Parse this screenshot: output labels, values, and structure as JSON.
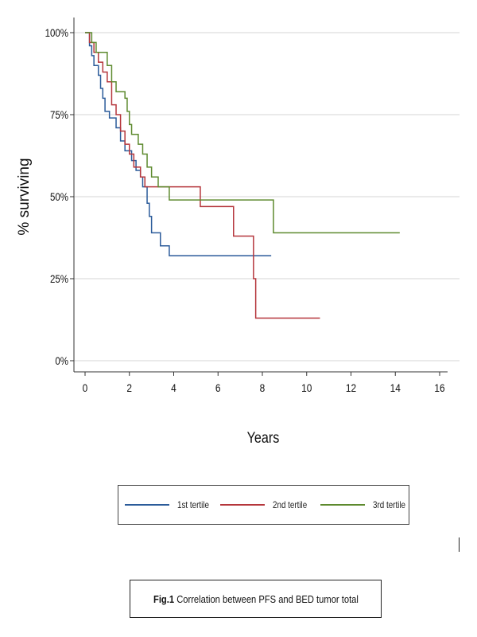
{
  "chart_data": {
    "type": "line",
    "step": true,
    "xlabel": "Years",
    "ylabel": "% surviving",
    "xlim": [
      0,
      16
    ],
    "ylim": [
      0,
      1
    ],
    "x_ticks": [
      0,
      2,
      4,
      6,
      8,
      10,
      12,
      14,
      16
    ],
    "y_ticks": [
      0,
      0.25,
      0.5,
      0.75,
      1
    ],
    "y_tick_labels": [
      "0%",
      "25%",
      "50%",
      "75%",
      "100%"
    ],
    "grid": true,
    "legend_position": "bottom",
    "series": [
      {
        "name": "1st tertile",
        "color": "#2b5b9a",
        "points": [
          [
            0,
            1.0
          ],
          [
            0.2,
            0.96
          ],
          [
            0.3,
            0.93
          ],
          [
            0.4,
            0.9
          ],
          [
            0.6,
            0.87
          ],
          [
            0.7,
            0.83
          ],
          [
            0.8,
            0.8
          ],
          [
            0.9,
            0.76
          ],
          [
            1.1,
            0.74
          ],
          [
            1.4,
            0.71
          ],
          [
            1.6,
            0.67
          ],
          [
            1.8,
            0.64
          ],
          [
            2.1,
            0.61
          ],
          [
            2.3,
            0.58
          ],
          [
            2.5,
            0.56
          ],
          [
            2.6,
            0.53
          ],
          [
            2.8,
            0.48
          ],
          [
            2.9,
            0.44
          ],
          [
            3.0,
            0.39
          ],
          [
            3.4,
            0.35
          ],
          [
            3.8,
            0.32
          ],
          [
            8.4,
            0.32
          ]
        ]
      },
      {
        "name": "2nd tertile",
        "color": "#b5363c",
        "points": [
          [
            0,
            1.0
          ],
          [
            0.2,
            0.97
          ],
          [
            0.4,
            0.94
          ],
          [
            0.6,
            0.91
          ],
          [
            0.8,
            0.88
          ],
          [
            1.0,
            0.85
          ],
          [
            1.2,
            0.78
          ],
          [
            1.4,
            0.75
          ],
          [
            1.6,
            0.7
          ],
          [
            1.8,
            0.66
          ],
          [
            2.0,
            0.63
          ],
          [
            2.2,
            0.59
          ],
          [
            2.5,
            0.56
          ],
          [
            2.7,
            0.53
          ],
          [
            5.2,
            0.47
          ],
          [
            6.7,
            0.38
          ],
          [
            7.6,
            0.25
          ],
          [
            7.7,
            0.13
          ],
          [
            10.6,
            0.13
          ]
        ]
      },
      {
        "name": "3rd tertile",
        "color": "#5d8a2e",
        "points": [
          [
            0,
            1.0
          ],
          [
            0.3,
            0.97
          ],
          [
            0.5,
            0.94
          ],
          [
            1.0,
            0.9
          ],
          [
            1.2,
            0.85
          ],
          [
            1.4,
            0.82
          ],
          [
            1.8,
            0.8
          ],
          [
            1.9,
            0.76
          ],
          [
            2.0,
            0.72
          ],
          [
            2.1,
            0.69
          ],
          [
            2.4,
            0.66
          ],
          [
            2.6,
            0.63
          ],
          [
            2.8,
            0.59
          ],
          [
            3.0,
            0.56
          ],
          [
            3.3,
            0.53
          ],
          [
            3.8,
            0.49
          ],
          [
            8.5,
            0.39
          ],
          [
            14.2,
            0.39
          ]
        ]
      }
    ]
  },
  "legend": {
    "items": [
      {
        "label": "1st tertile",
        "color": "#2b5b9a"
      },
      {
        "label": "2nd tertile",
        "color": "#b5363c"
      },
      {
        "label": "3rd tertile",
        "color": "#5d8a2e"
      }
    ]
  },
  "caption": {
    "prefix": "Fig.1",
    "text": " Correlation between PFS and BED tumor total"
  }
}
